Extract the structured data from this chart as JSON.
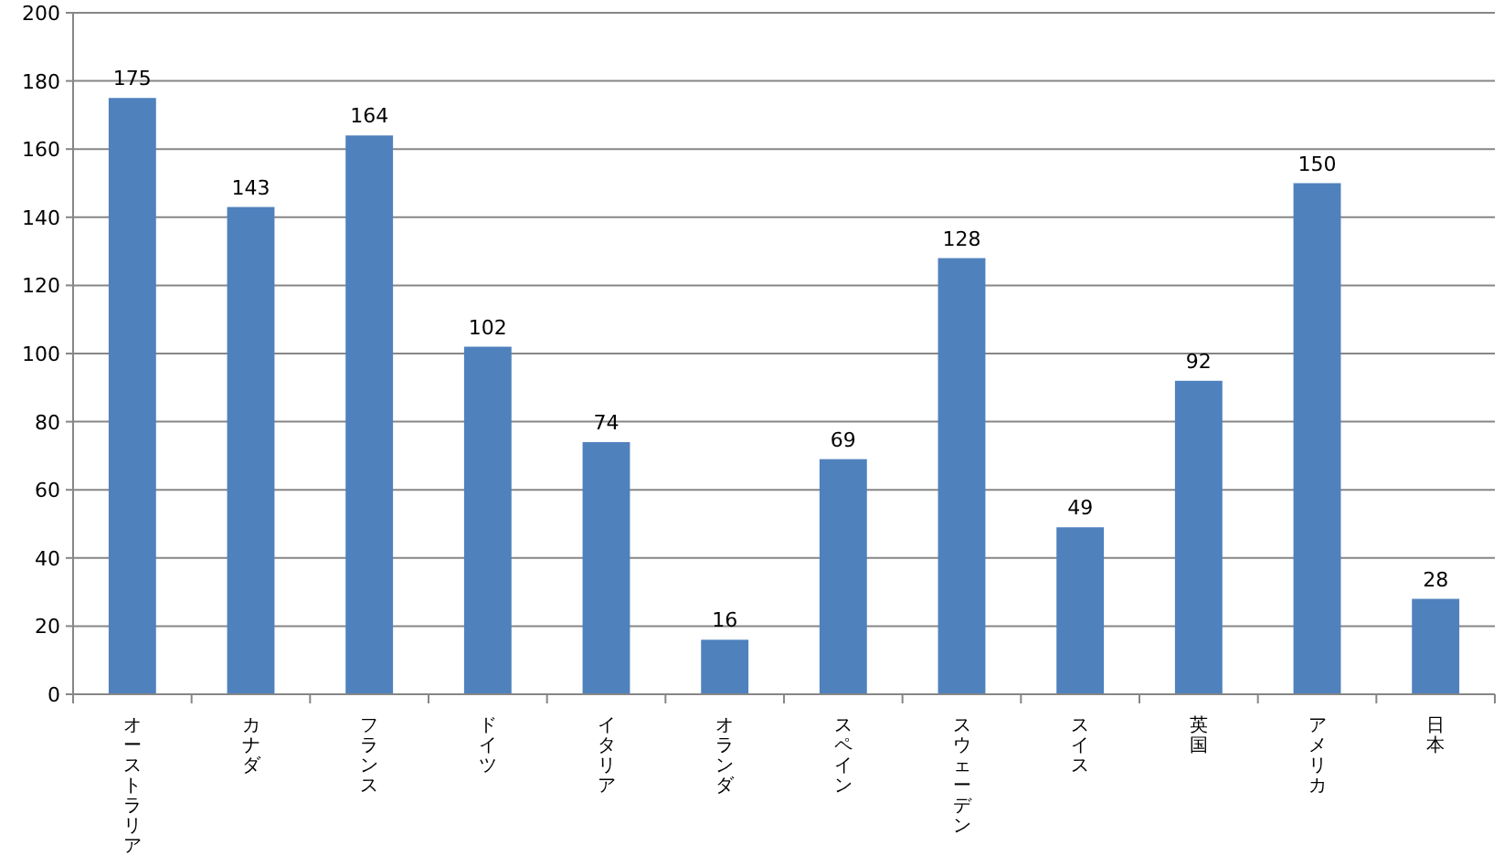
{
  "chart_data": {
    "type": "bar",
    "categories": [
      "オーストラリア",
      "カナダ",
      "フランス",
      "ドイツ",
      "イタリア",
      "オランダ",
      "スペイン",
      "スウェーデン",
      "スイス",
      "英国",
      "アメリカ",
      "日本"
    ],
    "values": [
      175,
      143,
      164,
      102,
      74,
      16,
      69,
      128,
      49,
      92,
      150,
      28
    ],
    "color": "#4f81bd",
    "ylim": [
      0,
      200
    ],
    "yticks": [
      0,
      20,
      40,
      60,
      80,
      100,
      120,
      140,
      160,
      180,
      200
    ],
    "grid": "y",
    "data_labels": true
  }
}
